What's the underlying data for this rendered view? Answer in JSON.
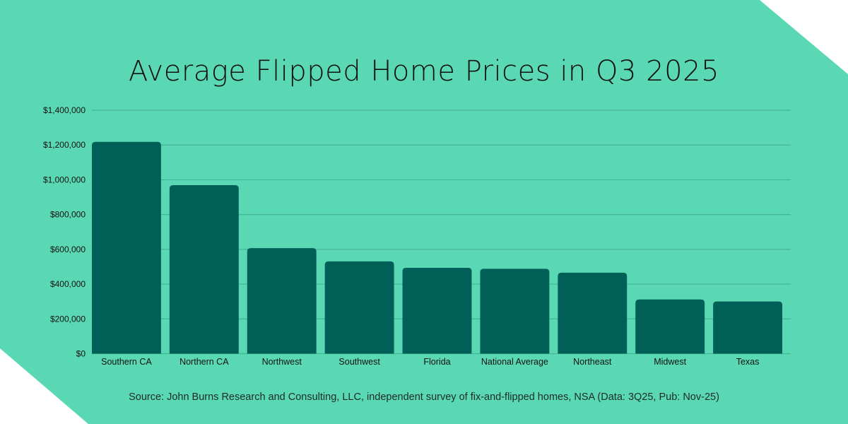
{
  "colors": {
    "background": "#5AD8B4",
    "bar": "#006058",
    "grid": "#45b597",
    "text": "#111111"
  },
  "chart_data": {
    "type": "bar",
    "title": "Average Flipped Home Prices in Q3 2025",
    "categories": [
      "Southern CA",
      "Northern CA",
      "Northwest",
      "Southwest",
      "Florida",
      "National Average",
      "Northeast",
      "Midwest",
      "Texas"
    ],
    "values": [
      1218000,
      969000,
      607000,
      531000,
      494000,
      488000,
      466000,
      312000,
      300000
    ],
    "ylim": [
      0,
      1400000
    ],
    "yticks": [
      0,
      200000,
      400000,
      600000,
      800000,
      1000000,
      1200000,
      1400000
    ],
    "ytick_labels": [
      "$0",
      "$200,000",
      "$400,000",
      "$600,000",
      "$800,000",
      "$1,000,000",
      "$1,200,000",
      "$1,400,000"
    ],
    "grid": true,
    "xlabel": "",
    "ylabel": ""
  },
  "source": "Source: John Burns Research and Consulting, LLC, independent survey of fix-and-flipped homes, NSA (Data: 3Q25, Pub: Nov-25)"
}
